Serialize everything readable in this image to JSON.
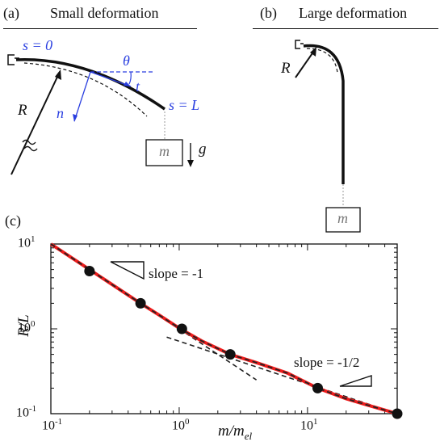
{
  "panel_a": {
    "label": "(a)",
    "title": "Small deformation",
    "s0": "s = 0",
    "sL": "s = L",
    "theta": "θ",
    "t": "t",
    "n": "n",
    "R": "R",
    "m": "m",
    "g": "g"
  },
  "panel_b": {
    "label": "(b)",
    "title": "Large deformation",
    "R": "R",
    "m": "m"
  },
  "panel_c": {
    "label": "(c)",
    "slope1": "slope = -1",
    "slope2": "slope = -1/2"
  },
  "colors": {
    "blue": "#2a3fe0",
    "red": "#ee1c1c",
    "black": "#111111"
  },
  "chart_data": {
    "type": "line",
    "title": "",
    "xlabel": "m/m_el",
    "ylabel": "R/L",
    "xscale": "log",
    "yscale": "log",
    "xlim": [
      0.1,
      50
    ],
    "ylim": [
      0.1,
      10
    ],
    "xticks": [
      "10^-1",
      "10^0",
      "10^1"
    ],
    "yticks": [
      "10^-1",
      "10^0",
      "10^1"
    ],
    "grid": false,
    "series": [
      {
        "style": "red solid line",
        "x": [
          0.1,
          0.2,
          0.35,
          0.5,
          0.7,
          1.0,
          1.5,
          2.5,
          4,
          7,
          12,
          20,
          30,
          50
        ],
        "y": [
          10,
          5.0,
          2.85,
          2.0,
          1.45,
          1.02,
          0.72,
          0.5,
          0.4,
          0.3,
          0.2,
          0.15,
          0.125,
          0.1
        ]
      },
      {
        "style": "black dashed line (slope -1 asymptote)",
        "x": [
          0.1,
          4
        ],
        "y": [
          10,
          0.25
        ]
      },
      {
        "style": "black dashed line (slope -1/2 asymptote)",
        "x": [
          0.8,
          50
        ],
        "y": [
          0.8,
          0.1
        ]
      },
      {
        "style": "black filled circles",
        "x": [
          0.2,
          0.5,
          1.05,
          2.5,
          12,
          50
        ],
        "y": [
          4.8,
          2.0,
          1.0,
          0.5,
          0.2,
          0.1
        ]
      }
    ]
  }
}
